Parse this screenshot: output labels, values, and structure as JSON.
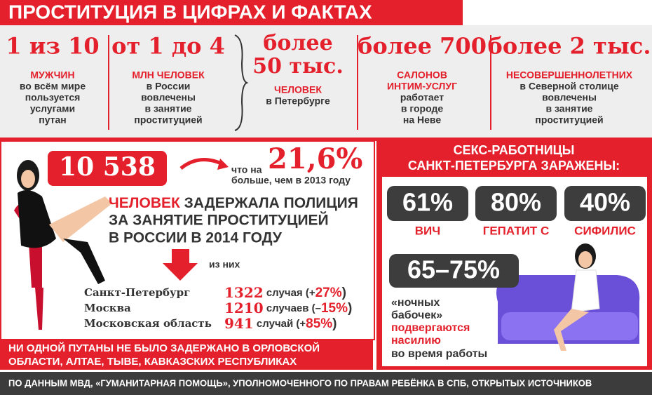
{
  "header": {
    "title": "ПРОСТИТУЦИЯ В ЦИФРАХ И ФАКТАХ"
  },
  "stats": [
    {
      "value": [
        "1 из 10"
      ],
      "label": [
        "МУЖЧИН"
      ],
      "text": [
        "во всём мире",
        "пользуется",
        "услугами",
        "путан"
      ]
    },
    {
      "value": [
        "от 1 до 4"
      ],
      "label": [
        "МЛН ЧЕЛОВЕК"
      ],
      "text": [
        "в России",
        "вовлечены",
        "в занятие",
        "проституцией"
      ]
    },
    {
      "value": [
        "более",
        "50 тыс."
      ],
      "label": [
        "ЧЕЛОВЕК"
      ],
      "text": [
        "в Петербурге"
      ]
    },
    {
      "value": [
        "более 700"
      ],
      "label": [
        "САЛОНОВ",
        "ИНТИМ-УСЛУГ"
      ],
      "text": [
        "работает",
        "в городе",
        "на Неве"
      ]
    },
    {
      "value": [
        "более 2 тыс."
      ],
      "label": [
        "НЕСОВЕРШЕННОЛЕТНИХ"
      ],
      "text": [
        "в Северной столице",
        "вовлечены",
        "в занятие",
        "проституцией"
      ]
    }
  ],
  "detentions": {
    "total": "10 538",
    "increase_prefix": "что на",
    "increase": "21,6%",
    "increase_text": "больше, чем в 2013 году",
    "headline_red": "ЧЕЛОВЕК",
    "headline_lines": [
      "ЗАДЕРЖАЛА ПОЛИЦИЯ",
      "ЗА ЗАНЯТИЕ ПРОСТИТУЦИЕЙ",
      "В РОССИИ В 2014 ГОДУ"
    ],
    "of_them": "из них",
    "regions": [
      {
        "name": "Санкт-Петербург",
        "count": "1322",
        "unit": "случая (+",
        "change": "27%",
        "close": ")"
      },
      {
        "name": "Москва",
        "count": "1210",
        "unit": "случаев (–",
        "change": "15%",
        "close": ")"
      },
      {
        "name": "Московская область",
        "count": "941",
        "unit": "случай (+",
        "change": "85%",
        "close": ")"
      }
    ]
  },
  "note": {
    "lines": [
      "НИ ОДНОЙ ПУТАНЫ НЕ БЫЛО ЗАДЕРЖАНО В ОРЛОВСКОЙ",
      "ОБЛАСТИ, АЛТАЕ, ТЫВЕ, КАВКАЗСКИХ РЕСПУБЛИКАХ"
    ]
  },
  "infections": {
    "title": [
      "СЕКС-РАБОТНИЦЫ",
      "САНКТ-ПЕТЕРБУРГА ЗАРАЖЕНЫ:"
    ],
    "items": [
      {
        "value": "61%",
        "label": "ВИЧ"
      },
      {
        "value": "80%",
        "label": "ГЕПАТИТ С"
      },
      {
        "value": "40%",
        "label": "СИФИЛИС"
      }
    ]
  },
  "violence": {
    "value": "65–75%",
    "lines": [
      "«ночных",
      "бабочек»"
    ],
    "red_lines": [
      "подвергаются",
      "насилию"
    ],
    "tail": "во время работы"
  },
  "footer": {
    "source": "ПО ДАННЫМ МВД, «ГУМАНИТАРНАЯ ПОМОЩЬ», УПОЛНОМОЧЕННОГО ПО ПРАВАМ РЕБЁНКА В СПБ, ОТКРЫТЫХ ИСТОЧНИКОВ"
  }
}
